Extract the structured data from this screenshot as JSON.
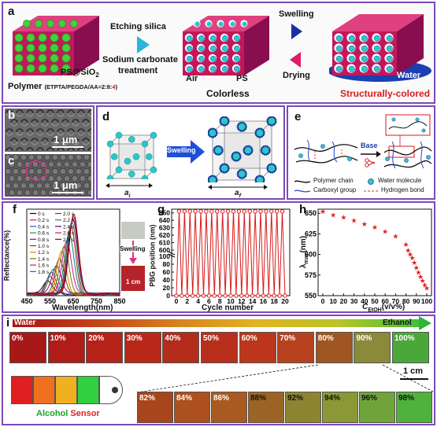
{
  "panel_a": {
    "label": "a",
    "etching": "Etching silica",
    "sodium": "Sodium carbonate",
    "treatment": "treatment",
    "swelling": "Swelling",
    "drying": "Drying",
    "ps_sio2": "PS@SiO",
    "ps_sio2_sub": "2",
    "polymer": "Polymer",
    "polymer_comp_prefix": "(ETPTA/PEGDA/AA=2:8:",
    "polymer_comp_red": "4",
    "polymer_comp_close": ")",
    "air": "Air",
    "ps": "PS",
    "colorless": "Colorless",
    "water": "Water",
    "structurally_colored": "Structurally-colored",
    "colors": {
      "polymer": "#d81b60",
      "sphere": "#3fd23a",
      "core": "#2ec7c9",
      "water": "#1a3fae",
      "highlight": "#d81b1b"
    }
  },
  "panel_b": {
    "label": "b",
    "scale": "1 μm"
  },
  "panel_c": {
    "label": "c",
    "scale": "1 μm"
  },
  "panel_d": {
    "label": "d",
    "swelling": "Swelling",
    "ai": "a",
    "ai_sub": "i",
    "af": "a",
    "af_sub": "f"
  },
  "panel_e": {
    "label": "e",
    "base": "Base",
    "legend": {
      "polymer_chain": "Polymer chain",
      "carboxyl_group": "Carboxyl group",
      "water_molecule": "Water molecule",
      "hydrogen_bond": "Hydrogen bond"
    }
  },
  "panel_f": {
    "label": "f",
    "ylabel": "Reflectance(%)",
    "xlabel": "Wavelength(nm)",
    "legend_col1": [
      "0 s",
      "0.2 s",
      "0.4 s",
      "0.6 s",
      "0.8 s",
      "1.0 s",
      "1.2 s",
      "1.4 s",
      "1.6 s",
      "1.8 s"
    ],
    "legend_col2": [
      "2.0 s",
      "2.2 s",
      "2.4 s",
      "2.6 s",
      "2.8 s"
    ],
    "inset_swelling": "Swelling",
    "inset_scale": "1 cm",
    "xticks": [
      "450",
      "550",
      "650",
      "750",
      "850"
    ]
  },
  "panel_g": {
    "label": "g",
    "ylabel": "PBG position (nm)",
    "xlabel": "Cycle number",
    "yticks_upper": [
      "650",
      "640",
      "630",
      "620",
      "610",
      "600"
    ],
    "yticks_lower": [
      "0",
      "20",
      "40",
      "60",
      "80",
      "100"
    ],
    "xticks": [
      "0",
      "2",
      "4",
      "6",
      "8",
      "10",
      "12",
      "14",
      "16",
      "18",
      "20"
    ]
  },
  "panel_h": {
    "label": "h",
    "ylabel": "λ",
    "ylabel_sub": "max",
    "ylabel_unit": "(nm)",
    "xlabel": "C",
    "xlabel_sub": "EtOH",
    "xlabel_unit": "(v/v%)",
    "yticks": [
      "650",
      "625",
      "600",
      "575",
      "550"
    ],
    "xticks": [
      "0",
      "10",
      "20",
      "30",
      "40",
      "50",
      "60",
      "70",
      "80",
      "90",
      "100"
    ]
  },
  "panel_i": {
    "label": "i",
    "water": "Water",
    "ethanol": "Ethanol",
    "row1": [
      "0%",
      "10%",
      "20%",
      "30%",
      "40%",
      "50%",
      "60%",
      "70%",
      "80%",
      "90%",
      "100%"
    ],
    "row2": [
      "82%",
      "84%",
      "86%",
      "88%",
      "92%",
      "94%",
      "96%",
      "98%"
    ],
    "scale": "1 cm",
    "alcohol": "Alcohol",
    "sensor": "Sensor"
  },
  "chart_data": [
    {
      "type": "line",
      "panel": "f",
      "xlabel": "Wavelength(nm)",
      "ylabel": "Reflectance(%)",
      "xlim": [
        450,
        850
      ],
      "series": [
        {
          "name": "0 s",
          "peak_nm": 540,
          "peak": 0.18
        },
        {
          "name": "0.2 s",
          "peak_nm": 548,
          "peak": 0.22
        },
        {
          "name": "0.4 s",
          "peak_nm": 556,
          "peak": 0.26
        },
        {
          "name": "0.6 s",
          "peak_nm": 566,
          "peak": 0.31
        },
        {
          "name": "0.8 s",
          "peak_nm": 578,
          "peak": 0.37
        },
        {
          "name": "1.0 s",
          "peak_nm": 590,
          "peak": 0.44
        },
        {
          "name": "1.2 s",
          "peak_nm": 600,
          "peak": 0.52
        },
        {
          "name": "1.4 s",
          "peak_nm": 612,
          "peak": 0.6
        },
        {
          "name": "1.6 s",
          "peak_nm": 622,
          "peak": 0.68
        },
        {
          "name": "1.8 s",
          "peak_nm": 632,
          "peak": 0.76
        },
        {
          "name": "2.0 s",
          "peak_nm": 640,
          "peak": 0.84
        },
        {
          "name": "2.2 s",
          "peak_nm": 645,
          "peak": 0.9
        },
        {
          "name": "2.4 s",
          "peak_nm": 649,
          "peak": 0.95
        },
        {
          "name": "2.6 s",
          "peak_nm": 651,
          "peak": 0.98
        },
        {
          "name": "2.8 s",
          "peak_nm": 652,
          "peak": 1.0
        }
      ]
    },
    {
      "type": "line",
      "panel": "g",
      "xlabel": "Cycle number",
      "ylabel": "PBG position (nm)",
      "xlim": [
        0,
        20
      ],
      "x": [
        0,
        0.5,
        1,
        1.5,
        2,
        2.5,
        3,
        3.5,
        4,
        4.5,
        5,
        5.5,
        6,
        6.5,
        7,
        7.5,
        8,
        8.5,
        9,
        9.5,
        10,
        10.5,
        11,
        11.5,
        12,
        12.5,
        13,
        13.5,
        14,
        14.5,
        15,
        15.5,
        16,
        16.5,
        17,
        17.5,
        18,
        18.5,
        19,
        19.5,
        20
      ],
      "values": [
        0,
        652,
        0,
        652,
        0,
        652,
        0,
        652,
        0,
        652,
        0,
        652,
        0,
        652,
        0,
        652,
        0,
        652,
        0,
        652,
        0,
        652,
        0,
        652,
        0,
        652,
        0,
        652,
        0,
        652,
        0,
        652,
        0,
        652,
        0,
        652,
        0,
        652,
        0,
        652,
        0
      ]
    },
    {
      "type": "scatter",
      "panel": "h",
      "xlabel": "C EtOH (v/v%)",
      "ylabel": "λmax (nm)",
      "xlim": [
        0,
        100
      ],
      "ylim": [
        550,
        655
      ],
      "x": [
        0,
        10,
        20,
        30,
        40,
        50,
        60,
        70,
        80,
        82,
        84,
        86,
        88,
        90,
        92,
        94,
        96,
        98,
        100
      ],
      "values": [
        652,
        648,
        645,
        641,
        637,
        633,
        628,
        622,
        612,
        605,
        600,
        596,
        590,
        584,
        578,
        573,
        568,
        563,
        559
      ]
    }
  ]
}
